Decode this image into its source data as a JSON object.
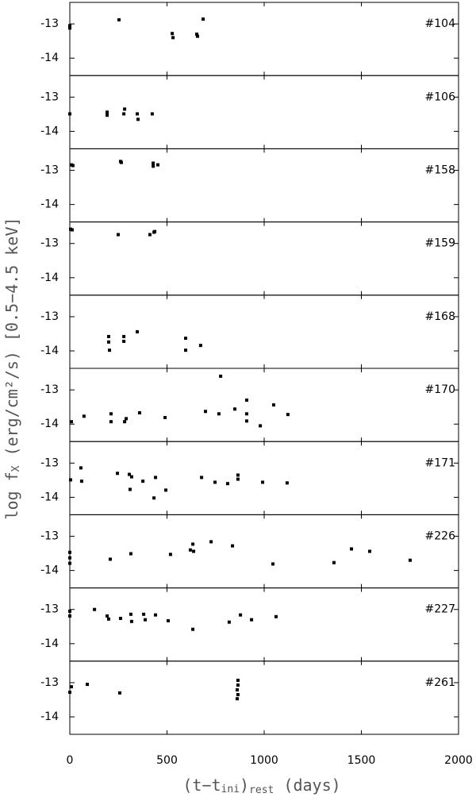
{
  "axes": {
    "ylabel": [
      "log f",
      "X",
      " (erg/cm²/s) [0.5−4.5 keV]"
    ],
    "xlabel": [
      "(t−t",
      "ini",
      ")",
      "rest",
      " (days)"
    ]
  },
  "chart_data": [
    {
      "type": "scatter",
      "title": "#104",
      "x": [
        0,
        0,
        253,
        527,
        531,
        653,
        657,
        686
      ],
      "values": [
        -13.05,
        -13.12,
        -12.88,
        -13.28,
        -13.4,
        -13.3,
        -13.36,
        -12.86
      ],
      "xlim": [
        0,
        2000
      ],
      "ylim": [
        -14.51,
        -12.37
      ],
      "xticks": [
        0,
        500,
        1000,
        1500,
        2000
      ],
      "yticks": [
        -13,
        -14
      ]
    },
    {
      "type": "scatter",
      "title": "#106",
      "x": [
        0,
        192,
        192,
        282,
        278,
        347,
        351,
        424
      ],
      "values": [
        -13.49,
        -13.44,
        -13.53,
        -13.35,
        -13.49,
        -13.49,
        -13.65,
        -13.49
      ],
      "xlim": [
        0,
        2000
      ],
      "ylim": [
        -14.51,
        -12.37
      ],
      "xticks": [
        0,
        500,
        1000,
        1500,
        2000
      ],
      "yticks": [
        -13,
        -14
      ]
    },
    {
      "type": "scatter",
      "title": "#158",
      "x": [
        8,
        16,
        261,
        265,
        429,
        429,
        453
      ],
      "values": [
        -12.84,
        -12.86,
        -12.74,
        -12.77,
        -12.79,
        -12.88,
        -12.84
      ],
      "xlim": [
        0,
        2000
      ],
      "ylim": [
        -14.51,
        -12.37
      ],
      "xticks": [
        0,
        500,
        1000,
        1500,
        2000
      ],
      "yticks": [
        -13,
        -14
      ]
    },
    {
      "type": "scatter",
      "title": "#159",
      "x": [
        4,
        12,
        249,
        412,
        433,
        437
      ],
      "values": [
        -12.58,
        -12.6,
        -12.74,
        -12.74,
        -12.67,
        -12.65
      ],
      "xlim": [
        0,
        2000
      ],
      "ylim": [
        -14.51,
        -12.37
      ],
      "xticks": [
        0,
        500,
        1000,
        1500,
        2000
      ],
      "yticks": [
        -13,
        -14
      ]
    },
    {
      "type": "scatter",
      "title": "#168",
      "x": [
        200,
        200,
        204,
        278,
        278,
        347,
        596,
        596,
        673
      ],
      "values": [
        -13.58,
        -13.74,
        -13.98,
        -13.58,
        -13.72,
        -13.44,
        -13.63,
        -13.98,
        -13.84
      ],
      "xlim": [
        0,
        2000
      ],
      "ylim": [
        -14.51,
        -12.37
      ],
      "xticks": [
        0,
        500,
        1000,
        1500,
        2000
      ],
      "yticks": [
        -13,
        -14
      ]
    },
    {
      "type": "scatter",
      "title": "#170",
      "x": [
        8,
        73,
        212,
        212,
        282,
        290,
        359,
        490,
        698,
        767,
        776,
        849,
        910,
        910,
        910,
        980,
        1049,
        1122
      ],
      "values": [
        -13.93,
        -13.77,
        -13.7,
        -13.93,
        -13.93,
        -13.84,
        -13.67,
        -13.81,
        -13.63,
        -13.7,
        -12.6,
        -13.56,
        -13.3,
        -13.7,
        -13.91,
        -14.05,
        -13.44,
        -13.72
      ],
      "xlim": [
        0,
        2000
      ],
      "ylim": [
        -14.51,
        -12.37
      ],
      "xticks": [
        0,
        500,
        1000,
        1500,
        2000
      ],
      "yticks": [
        -13,
        -14
      ]
    },
    {
      "type": "scatter",
      "title": "#171",
      "x": [
        4,
        57,
        61,
        245,
        306,
        310,
        318,
        376,
        441,
        433,
        494,
        678,
        747,
        812,
        865,
        865,
        992,
        1118
      ],
      "values": [
        -13.49,
        -13.14,
        -13.53,
        -13.3,
        -13.33,
        -13.77,
        -13.4,
        -13.53,
        -13.42,
        -14.02,
        -13.79,
        -13.42,
        -13.56,
        -13.6,
        -13.35,
        -13.47,
        -13.56,
        -13.58
      ],
      "xlim": [
        0,
        2000
      ],
      "ylim": [
        -14.51,
        -12.37
      ],
      "xticks": [
        0,
        500,
        1000,
        1500,
        2000
      ],
      "yticks": [
        -13,
        -14
      ]
    },
    {
      "type": "scatter",
      "title": "#226",
      "x": [
        0,
        0,
        0,
        208,
        314,
        518,
        620,
        633,
        637,
        727,
        837,
        1045,
        1359,
        1449,
        1543,
        1751
      ],
      "values": [
        -13.47,
        -13.63,
        -13.79,
        -13.67,
        -13.51,
        -13.53,
        -13.4,
        -13.23,
        -13.44,
        -13.16,
        -13.28,
        -13.81,
        -13.77,
        -13.37,
        -13.44,
        -13.7
      ],
      "xlim": [
        0,
        2000
      ],
      "ylim": [
        -14.51,
        -12.37
      ],
      "xticks": [
        0,
        500,
        1000,
        1500,
        2000
      ],
      "yticks": [
        -13,
        -14
      ]
    },
    {
      "type": "scatter",
      "title": "#227",
      "x": [
        0,
        0,
        127,
        192,
        200,
        261,
        314,
        318,
        380,
        388,
        441,
        506,
        633,
        820,
        878,
        935,
        1061
      ],
      "values": [
        -13.05,
        -13.19,
        -13.0,
        -13.19,
        -13.28,
        -13.26,
        -13.14,
        -13.35,
        -13.14,
        -13.3,
        -13.16,
        -13.33,
        -13.58,
        -13.37,
        -13.16,
        -13.3,
        -13.21
      ],
      "xlim": [
        0,
        2000
      ],
      "ylim": [
        -14.51,
        -12.37
      ],
      "xticks": [
        0,
        500,
        1000,
        1500,
        2000
      ],
      "yticks": [
        -13,
        -14
      ]
    },
    {
      "type": "scatter",
      "title": "#261",
      "x": [
        0,
        8,
        90,
        257,
        865,
        865,
        861,
        865,
        861
      ],
      "values": [
        -13.28,
        -13.12,
        -13.05,
        -13.3,
        -12.93,
        -13.07,
        -13.21,
        -13.35,
        -13.47
      ],
      "xlim": [
        0,
        2000
      ],
      "ylim": [
        -14.51,
        -12.37
      ],
      "xticks": [
        0,
        500,
        1000,
        1500,
        2000
      ],
      "yticks": [
        -13,
        -14
      ]
    }
  ]
}
